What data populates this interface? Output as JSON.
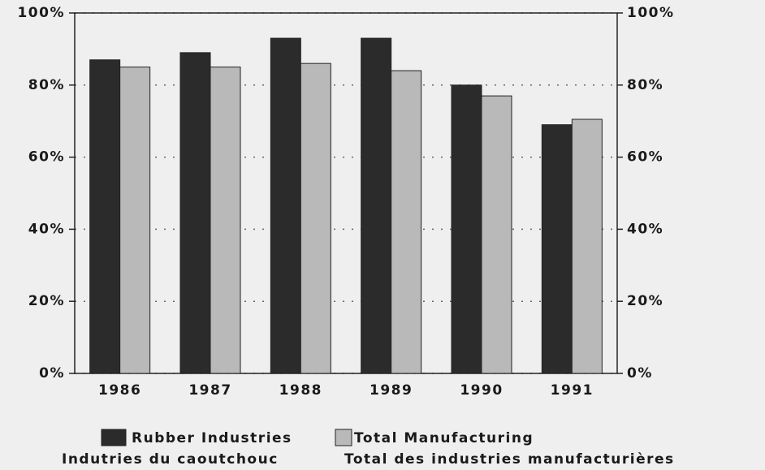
{
  "chart_data": {
    "type": "bar",
    "categories": [
      "1986",
      "1987",
      "1988",
      "1989",
      "1990",
      "1991"
    ],
    "series": [
      {
        "name": "Rubber Industries",
        "color": "#2b2b2b",
        "values": [
          87,
          89,
          93,
          93,
          80,
          69
        ]
      },
      {
        "name": "Total Manufacturing",
        "color": "#b9b9b9",
        "values": [
          85,
          85,
          86,
          84,
          77,
          70.5
        ]
      }
    ],
    "secondary_names": [
      "Indutries du caoutchouc",
      "Total des industries manufacturières"
    ],
    "ylim": [
      0,
      100
    ],
    "yticks": [
      {
        "value": 0,
        "label": "0%"
      },
      {
        "value": 20,
        "label": "20%"
      },
      {
        "value": 40,
        "label": "40%"
      },
      {
        "value": 60,
        "label": "60%"
      },
      {
        "value": 80,
        "label": "80%"
      },
      {
        "value": 100,
        "label": "100%"
      }
    ],
    "y2lim": [
      0,
      100
    ],
    "y2ticks": [
      {
        "value": 0,
        "label": "0%"
      },
      {
        "value": 20,
        "label": "20%"
      },
      {
        "value": 40,
        "label": "40%"
      },
      {
        "value": 60,
        "label": "60%"
      },
      {
        "value": 80,
        "label": "80%"
      },
      {
        "value": 100,
        "label": "100%"
      }
    ],
    "grid": true
  }
}
